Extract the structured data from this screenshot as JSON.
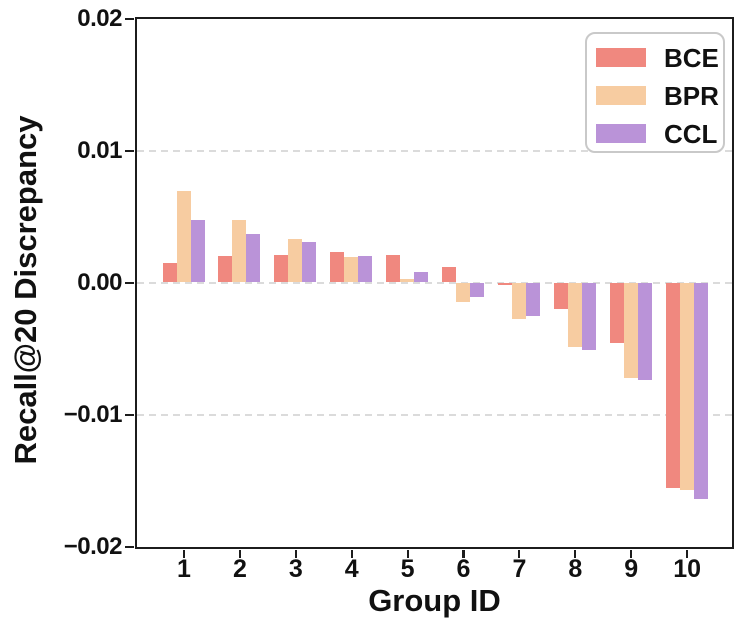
{
  "chart_data": {
    "type": "bar",
    "title": "",
    "xlabel": "Group ID",
    "ylabel": "Recall@20 Discrepancy",
    "categories": [
      "1",
      "2",
      "3",
      "4",
      "5",
      "6",
      "7",
      "8",
      "9",
      "10"
    ],
    "series": [
      {
        "name": "BCE",
        "color": "#F0887F",
        "values": [
          0.0015,
          0.002,
          0.0021,
          0.0023,
          0.0021,
          0.0012,
          -0.0002,
          -0.002,
          -0.0046,
          -0.0156
        ]
      },
      {
        "name": "BPR",
        "color": "#F7CCA1",
        "values": [
          0.0069,
          0.0047,
          0.0033,
          0.0019,
          0.0003,
          -0.0015,
          -0.0028,
          -0.0049,
          -0.0072,
          -0.0157
        ]
      },
      {
        "name": "CCL",
        "color": "#BA93D8",
        "values": [
          0.0047,
          0.0037,
          0.0031,
          0.002,
          0.0008,
          -0.0011,
          -0.0025,
          -0.0051,
          -0.0074,
          -0.0164
        ]
      }
    ],
    "ylim": [
      -0.02,
      0.02
    ],
    "y_ticks": [
      {
        "value": 0.02,
        "label": "0.02"
      },
      {
        "value": 0.01,
        "label": "0.01"
      },
      {
        "value": 0.0,
        "label": "0.00"
      },
      {
        "value": -0.01,
        "label": "−0.01"
      },
      {
        "value": -0.02,
        "label": "−0.02"
      }
    ],
    "gridline_values": [
      0.01,
      0.0,
      -0.01
    ],
    "grid": "horizontal dashed",
    "legend_position": "upper right",
    "legend_entries": [
      "BCE",
      "BPR",
      "CCL"
    ],
    "colors": {
      "grid": "#DBDBDB",
      "axis": "#1C1C1C",
      "text": "#111111"
    }
  }
}
